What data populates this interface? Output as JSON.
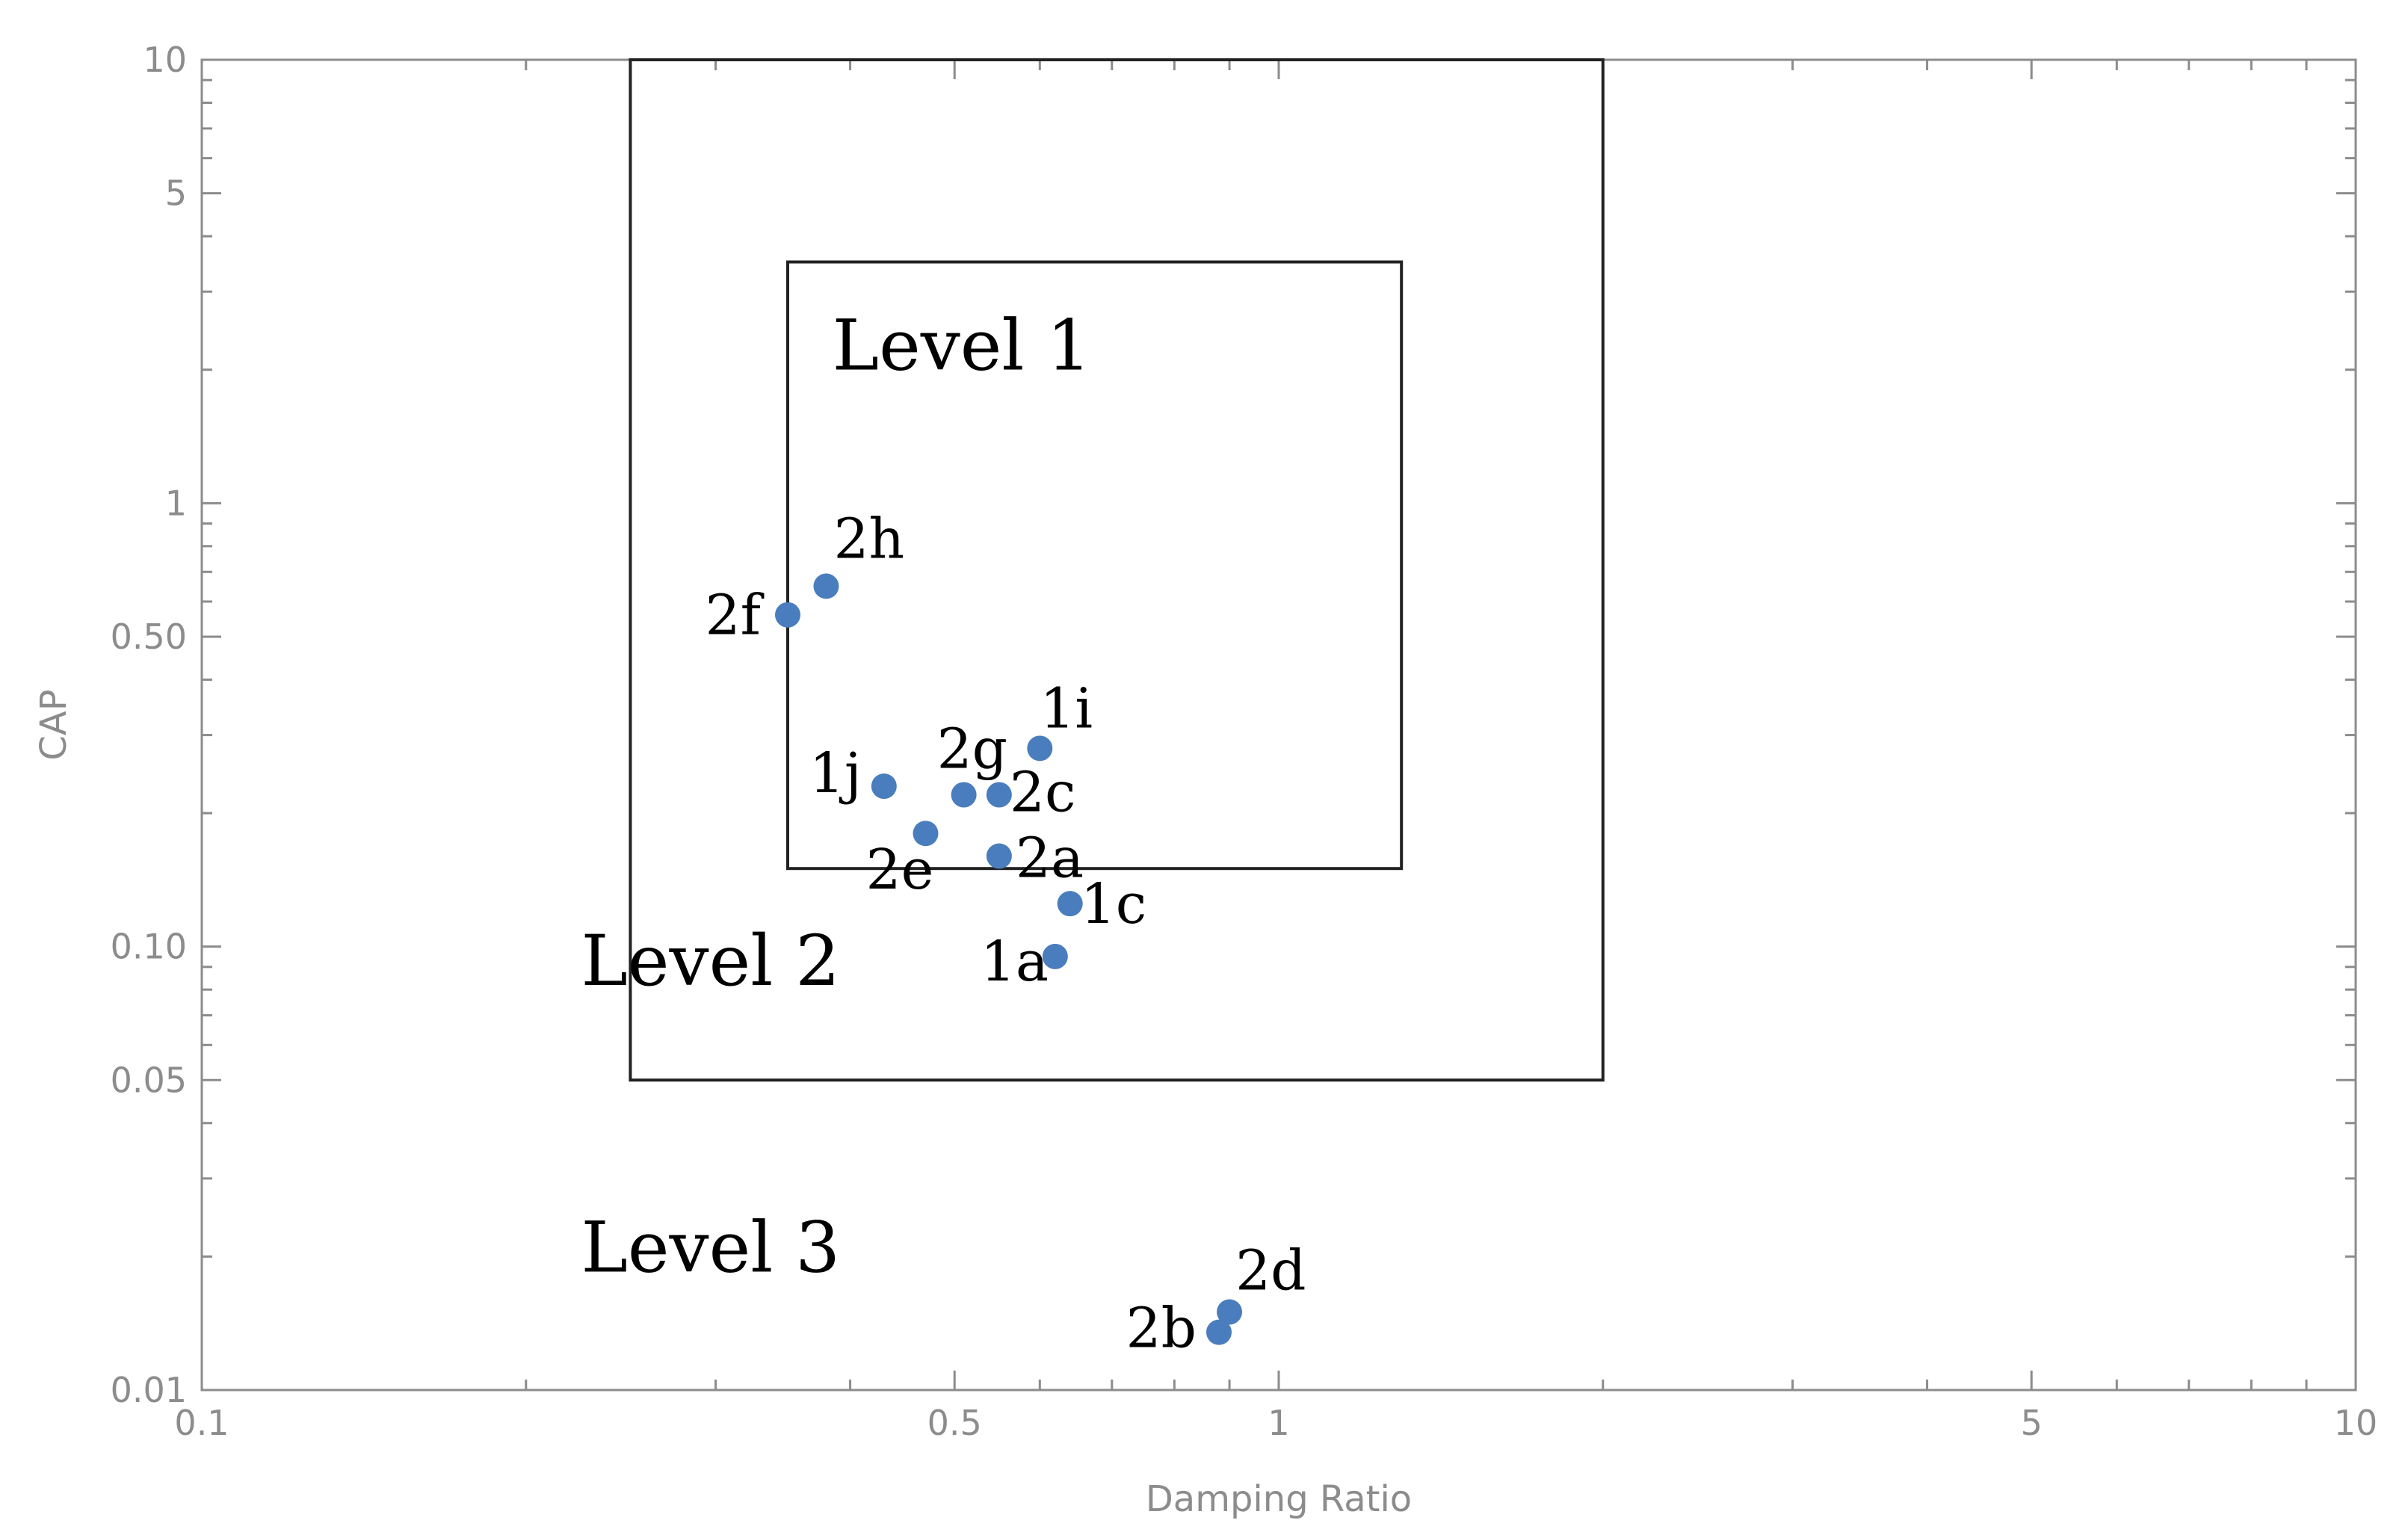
{
  "chart_data": {
    "type": "scatter",
    "xlabel": "Damping Ratio",
    "ylabel": "CAP",
    "x_scale": "log",
    "y_scale": "log",
    "xlim": [
      0.1,
      10
    ],
    "ylim": [
      0.01,
      10
    ],
    "x_tick_labels": [
      {
        "value": 0.1,
        "label": "0.1"
      },
      {
        "value": 0.5,
        "label": "0.5"
      },
      {
        "value": 1,
        "label": "1"
      },
      {
        "value": 5,
        "label": "5"
      },
      {
        "value": 10,
        "label": "10"
      }
    ],
    "y_tick_labels": [
      {
        "value": 0.01,
        "label": "0.01"
      },
      {
        "value": 0.05,
        "label": "0.05"
      },
      {
        "value": 0.1,
        "label": "0.10"
      },
      {
        "value": 0.5,
        "label": "0.50"
      },
      {
        "value": 1,
        "label": "1"
      },
      {
        "value": 5,
        "label": "5"
      },
      {
        "value": 10,
        "label": "10"
      }
    ],
    "grid": false,
    "marker_color": "#4a7dbd",
    "regions": [
      {
        "label": "Level 1",
        "x_range": [
          0.35,
          1.3
        ],
        "y_range": [
          0.15,
          3.5
        ]
      },
      {
        "label": "Level 2",
        "x_range": [
          0.25,
          2.0
        ],
        "y_range": [
          0.05,
          10
        ]
      },
      {
        "label": "Level 3",
        "x_range": [
          0.1,
          10
        ],
        "y_range": [
          0.01,
          10
        ]
      }
    ],
    "points": [
      {
        "label": "2h",
        "x": 0.38,
        "y": 0.65
      },
      {
        "label": "2f",
        "x": 0.35,
        "y": 0.56
      },
      {
        "label": "1i",
        "x": 0.6,
        "y": 0.28
      },
      {
        "label": "1j",
        "x": 0.43,
        "y": 0.23
      },
      {
        "label": "2g",
        "x": 0.51,
        "y": 0.22
      },
      {
        "label": "2c",
        "x": 0.55,
        "y": 0.22
      },
      {
        "label": "2e",
        "x": 0.47,
        "y": 0.18
      },
      {
        "label": "2a",
        "x": 0.55,
        "y": 0.16
      },
      {
        "label": "1c",
        "x": 0.64,
        "y": 0.125
      },
      {
        "label": "1a",
        "x": 0.62,
        "y": 0.095
      },
      {
        "label": "2d",
        "x": 0.9,
        "y": 0.015
      },
      {
        "label": "2b",
        "x": 0.88,
        "y": 0.0135
      }
    ]
  }
}
